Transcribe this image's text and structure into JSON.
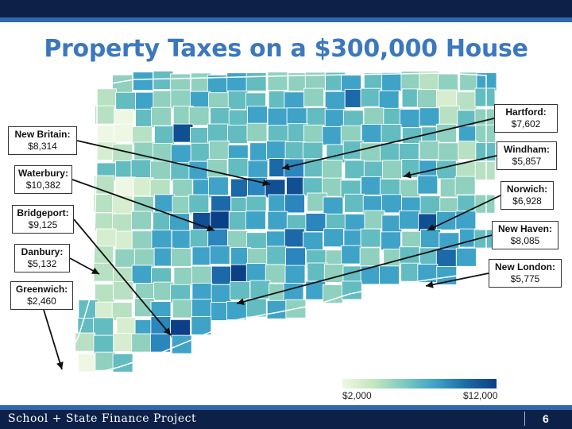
{
  "title": "Property Taxes on a $300,000 House",
  "callouts": [
    {
      "id": "new-britain",
      "name": "New Britain:",
      "value": "$8,314"
    },
    {
      "id": "waterbury",
      "name": "Waterbury:",
      "value": "$10,382"
    },
    {
      "id": "bridgeport",
      "name": "Bridgeport:",
      "value": "$9,125"
    },
    {
      "id": "danbury",
      "name": "Danbury:",
      "value": "$5,132"
    },
    {
      "id": "greenwich",
      "name": "Greenwich:",
      "value": "$2,460"
    },
    {
      "id": "hartford",
      "name": "Hartford:",
      "value": "$7,602"
    },
    {
      "id": "windham",
      "name": "Windham:",
      "value": "$5,857"
    },
    {
      "id": "norwich",
      "name": "Norwich:",
      "value": "$6,928"
    },
    {
      "id": "new-haven",
      "name": "New Haven:",
      "value": "$8,085"
    },
    {
      "id": "new-london",
      "name": "New London:",
      "value": "$5,775"
    }
  ],
  "legend": {
    "min_label": "$2,000",
    "max_label": "$12,000"
  },
  "colors": {
    "low": "#eef7e4",
    "mid": "#7ccbbe",
    "high": "#0b3f86",
    "brand_dark": "#0d2148",
    "brand_accent": "#2f68ad",
    "title": "#3b78be"
  },
  "footer": {
    "org": "School + State Finance Project",
    "page": "6"
  }
}
